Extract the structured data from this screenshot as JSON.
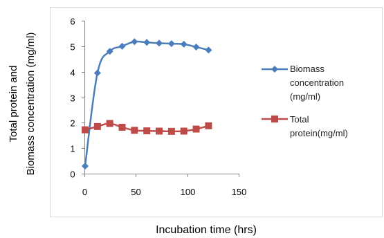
{
  "chart_data": {
    "type": "line",
    "xlabel": "Incubation time (hrs)",
    "ylabel_lines": [
      "Total protein and",
      "Biomass concentration (mg/ml)"
    ],
    "xlim": [
      0,
      150
    ],
    "ylim": [
      0,
      6
    ],
    "x_ticks": [
      "0",
      "50",
      "100",
      "150"
    ],
    "y_ticks": [
      "0",
      "1",
      "2",
      "3",
      "4",
      "5",
      "6"
    ],
    "grid": false,
    "legend_position": "right",
    "series": [
      {
        "name_lines": [
          "Biomass",
          "concentration",
          "(mg/ml)"
        ],
        "color": "#4a7ebb",
        "marker": "diamond",
        "x": [
          0,
          12,
          24,
          36,
          48,
          60,
          72,
          84,
          96,
          108,
          120
        ],
        "y": [
          0.3,
          3.95,
          4.8,
          5.0,
          5.18,
          5.15,
          5.12,
          5.1,
          5.08,
          4.97,
          4.85
        ]
      },
      {
        "name_lines": [
          "Total",
          "protein(mg/ml)"
        ],
        "color": "#be4b48",
        "marker": "square",
        "x": [
          0,
          12,
          24,
          36,
          48,
          60,
          72,
          84,
          96,
          108,
          120
        ],
        "y": [
          1.72,
          1.85,
          1.97,
          1.82,
          1.7,
          1.68,
          1.67,
          1.66,
          1.67,
          1.75,
          1.88
        ]
      }
    ]
  }
}
